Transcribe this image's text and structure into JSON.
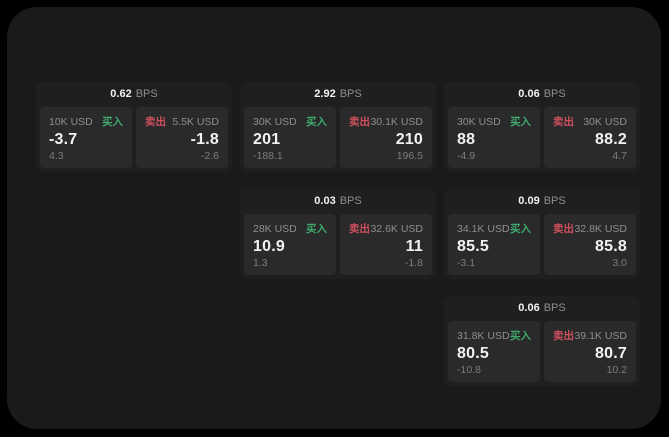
{
  "labels": {
    "bps": "BPS",
    "buy": "买入",
    "sell": "卖出"
  },
  "colors": {
    "page_bg": "#1a1a1a",
    "card_bg": "#1f1f1f",
    "panel_bg": "#2a2a2a",
    "buy_green": "#3fa86c",
    "sell_red": "#cd4f5e",
    "text_primary": "#f2f2f2",
    "text_muted": "#8e8e8e",
    "text_dim": "#7d7d7d"
  },
  "cards": [
    {
      "bps": "0.62",
      "col": 1,
      "row": 1,
      "buy": {
        "amount": "10K USD",
        "value": "-3.7",
        "sub": "4.3"
      },
      "sell": {
        "amount": "5.5K USD",
        "value": "-1.8",
        "sub": "-2.6"
      }
    },
    {
      "bps": "2.92",
      "col": 2,
      "row": 1,
      "buy": {
        "amount": "30K USD",
        "value": "201",
        "sub": "-188.1"
      },
      "sell": {
        "amount": "30.1K USD",
        "value": "210",
        "sub": "196.5"
      }
    },
    {
      "bps": "0.06",
      "col": 3,
      "row": 1,
      "buy": {
        "amount": "30K USD",
        "value": "88",
        "sub": "-4.9"
      },
      "sell": {
        "amount": "30K USD",
        "value": "88.2",
        "sub": "4.7"
      }
    },
    {
      "bps": "0.03",
      "col": 2,
      "row": 2,
      "buy": {
        "amount": "28K USD",
        "value": "10.9",
        "sub": "1.3"
      },
      "sell": {
        "amount": "32.6K USD",
        "value": "11",
        "sub": "-1.8"
      }
    },
    {
      "bps": "0.09",
      "col": 3,
      "row": 2,
      "buy": {
        "amount": "34.1K USD",
        "value": "85.5",
        "sub": "-3.1"
      },
      "sell": {
        "amount": "32.8K USD",
        "value": "85.8",
        "sub": "3.0"
      }
    },
    {
      "bps": "0.06",
      "col": 3,
      "row": 3,
      "buy": {
        "amount": "31.8K USD",
        "value": "80.5",
        "sub": "-10.8"
      },
      "sell": {
        "amount": "39.1K USD",
        "value": "80.7",
        "sub": "10.2"
      }
    }
  ]
}
